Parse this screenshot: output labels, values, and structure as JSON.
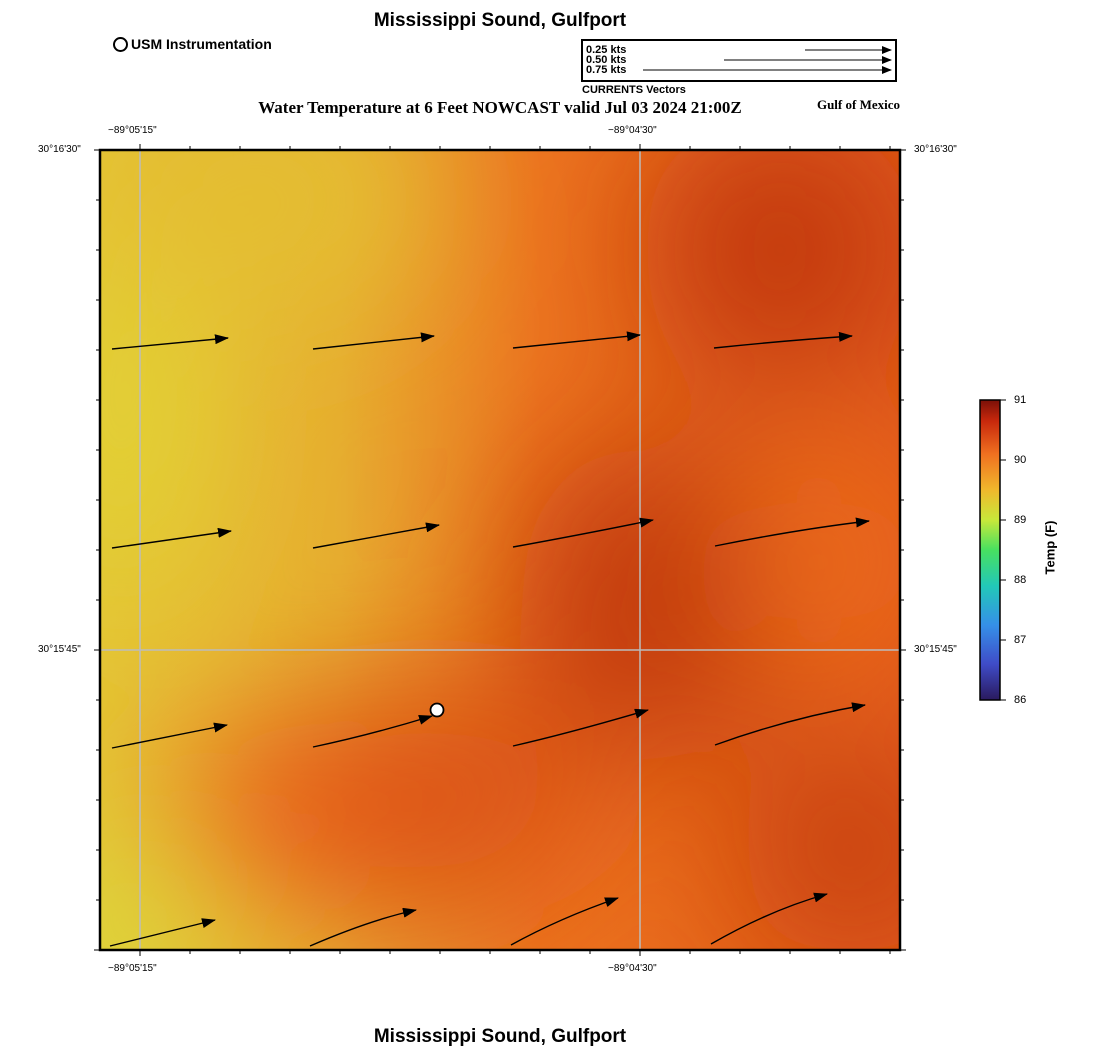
{
  "header": {
    "title": "Mississippi Sound, Gulfport",
    "subtitle": "Water Temperature at 6 Feet NOWCAST valid Jul 03 2024 21:00Z",
    "region_label": "Gulf of Mexico",
    "footer_title": "Mississippi Sound, Gulfport"
  },
  "legend": {
    "station_label": "USM Instrumentation",
    "vector_scale": [
      "0.25 kts",
      "0.50 kts",
      "0.75 kts"
    ],
    "vector_caption": "CURRENTS Vectors"
  },
  "axes": {
    "lon_labels": [
      "−89°05'15\"",
      "−89°04'30\""
    ],
    "lat_labels": [
      "30°16'30\"",
      "30°15'45\""
    ]
  },
  "colorbar": {
    "title": "Temp (F)",
    "ticks": [
      "91",
      "90",
      "89",
      "88",
      "87",
      "86"
    ],
    "min": 86,
    "max": 91
  },
  "colors": {
    "cool": "#e4d23a",
    "mid": "#e8a52e",
    "warm": "#ec6a1c",
    "hot": "#c6390e",
    "station_marker": "#ffffff"
  },
  "map": {
    "station": {
      "name": "USM Instrumentation"
    },
    "current_vectors_count": 16
  }
}
